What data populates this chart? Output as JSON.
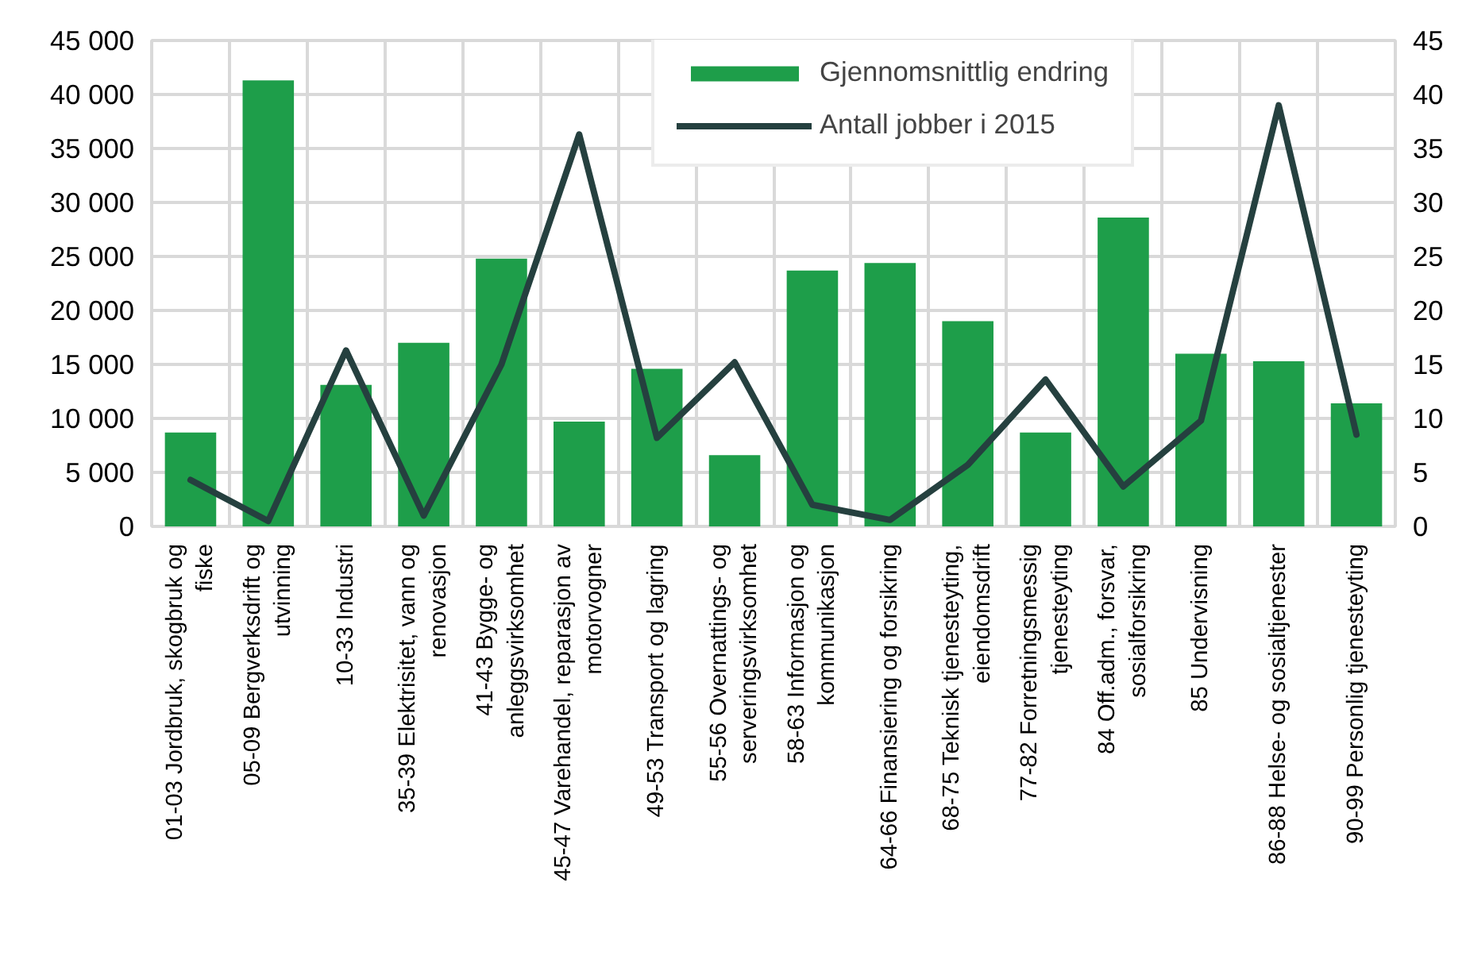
{
  "chart_data": {
    "type": "bar",
    "categories": [
      "01-03 Jordbruk, skogbruk og fiske",
      "05-09 Bergverksdrift og utvinning",
      "10-33 Industri",
      "35-39 Elektrisitet, vann og renovasjon",
      "41-43 Bygge- og anleggsvirksomhet",
      "45-47 Varehandel, reparasjon av motorvogner",
      "49-53 Transport og lagring",
      "55-56 Overnattings- og serveringsvirksomhet",
      "58-63 Informasjon og kommunikasjon",
      "64-66 Finansiering og forsikring",
      "68-75 Teknisk tjenesteyting, eiendomsdrift",
      "77-82 Forretningsmessig tjenesteyting",
      "84 Off.adm., forsvar, sosialforsikring",
      "85 Undervisning",
      "86-88 Helse- og sosialtjenester",
      "90-99 Personlig tjenesteyting"
    ],
    "series": [
      {
        "name": "Gjennomsnittlig endring",
        "color": "#1e9e4a",
        "values": [
          8700,
          41300,
          13100,
          17000,
          24800,
          9700,
          14600,
          6600,
          23700,
          24400,
          19000,
          8700,
          28600,
          16000,
          15300,
          11400
        ]
      },
      {
        "name": "Antall jobber i 2015",
        "type": "line",
        "axis": "y2",
        "color": "#25403f",
        "values": [
          4.3,
          0.5,
          16.3,
          1.0,
          15.0,
          36.3,
          8.2,
          15.2,
          2.0,
          0.6,
          5.7,
          13.6,
          3.7,
          9.8,
          39.0,
          8.5
        ]
      }
    ],
    "ylim": [
      0,
      45000
    ],
    "yticks": [
      {
        "value": 0,
        "label": "0"
      },
      {
        "value": 5000,
        "label": "5 000"
      },
      {
        "value": 10000,
        "label": "10 000"
      },
      {
        "value": 15000,
        "label": "15 000"
      },
      {
        "value": 20000,
        "label": "20 000"
      },
      {
        "value": 25000,
        "label": "25 000"
      },
      {
        "value": 30000,
        "label": "30 000"
      },
      {
        "value": 35000,
        "label": "35 000"
      },
      {
        "value": 40000,
        "label": "40 000"
      },
      {
        "value": 45000,
        "label": "45 000"
      }
    ],
    "y2lim": [
      0,
      45
    ],
    "y2ticks": [
      0,
      5,
      10,
      15,
      20,
      25,
      30,
      35,
      40,
      45
    ],
    "grid": true,
    "legend": "top right",
    "marker": "none",
    "line_style": "solid"
  }
}
